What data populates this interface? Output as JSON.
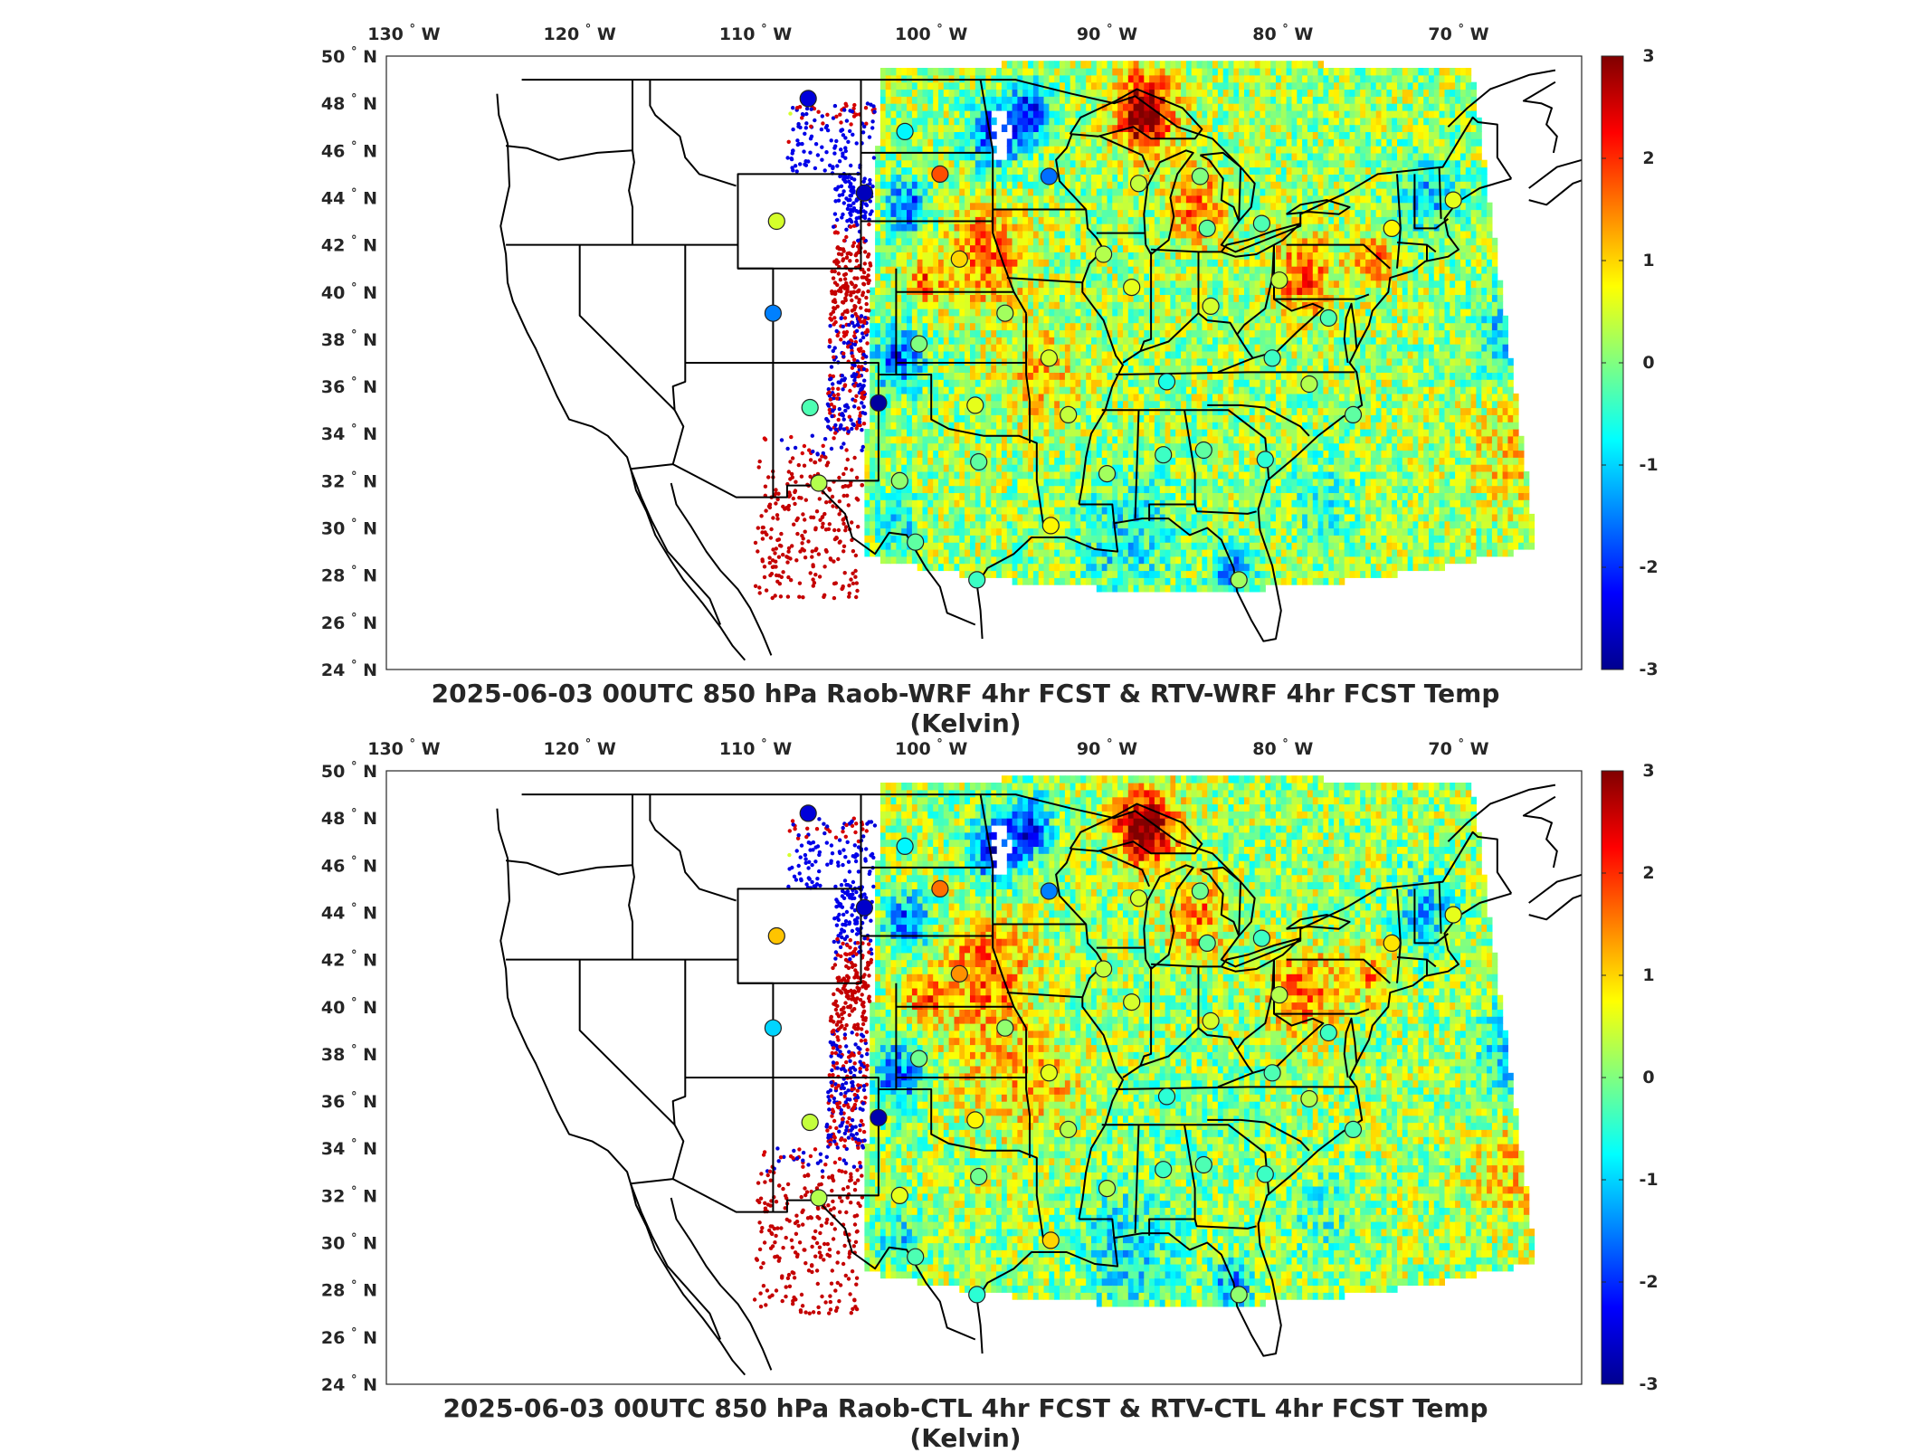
{
  "panels": [
    {
      "id": "wrf",
      "title": "2025-06-03 00UTC 850 hPa Raob-WRF 4hr FCST & RTV-WRF 4hr FCST Temp (Kelvin)",
      "stations": [
        {
          "lon": -107.0,
          "lat": 48.2,
          "value": -2.5
        },
        {
          "lon": -101.5,
          "lat": 46.8,
          "value": -0.8
        },
        {
          "lon": -99.5,
          "lat": 45.0,
          "value": 1.8
        },
        {
          "lon": -103.8,
          "lat": 44.2,
          "value": -2.7
        },
        {
          "lon": -108.8,
          "lat": 43.0,
          "value": 0.5
        },
        {
          "lon": -109.0,
          "lat": 39.1,
          "value": -1.5
        },
        {
          "lon": -106.9,
          "lat": 35.1,
          "value": -0.3
        },
        {
          "lon": -103.0,
          "lat": 35.3,
          "value": -2.9
        },
        {
          "lon": -98.4,
          "lat": 41.4,
          "value": 1.0
        },
        {
          "lon": -95.8,
          "lat": 39.1,
          "value": 0.2
        },
        {
          "lon": -100.7,
          "lat": 37.8,
          "value": 0.0
        },
        {
          "lon": -97.5,
          "lat": 35.2,
          "value": 0.6
        },
        {
          "lon": -93.3,
          "lat": 37.2,
          "value": 0.5
        },
        {
          "lon": -92.2,
          "lat": 34.8,
          "value": 0.4
        },
        {
          "lon": -97.3,
          "lat": 32.8,
          "value": -0.2
        },
        {
          "lon": -101.8,
          "lat": 32.0,
          "value": 0.1
        },
        {
          "lon": -106.4,
          "lat": 31.9,
          "value": 0.3
        },
        {
          "lon": -100.9,
          "lat": 29.4,
          "value": -0.2
        },
        {
          "lon": -97.4,
          "lat": 27.8,
          "value": -0.4
        },
        {
          "lon": -93.2,
          "lat": 30.1,
          "value": 0.8
        },
        {
          "lon": -90.0,
          "lat": 32.3,
          "value": 0.2
        },
        {
          "lon": -86.8,
          "lat": 33.1,
          "value": -0.4
        },
        {
          "lon": -84.5,
          "lat": 33.3,
          "value": -0.2
        },
        {
          "lon": -86.6,
          "lat": 36.2,
          "value": -0.6
        },
        {
          "lon": -88.6,
          "lat": 40.2,
          "value": 0.6
        },
        {
          "lon": -90.2,
          "lat": 41.6,
          "value": 0.3
        },
        {
          "lon": -93.3,
          "lat": 44.9,
          "value": -1.6
        },
        {
          "lon": -88.2,
          "lat": 44.6,
          "value": 0.4
        },
        {
          "lon": -84.7,
          "lat": 44.9,
          "value": 0.0
        },
        {
          "lon": -84.3,
          "lat": 42.7,
          "value": -0.2
        },
        {
          "lon": -81.2,
          "lat": 42.9,
          "value": -0.3
        },
        {
          "lon": -84.1,
          "lat": 39.4,
          "value": 0.5
        },
        {
          "lon": -80.2,
          "lat": 40.5,
          "value": 0.4
        },
        {
          "lon": -80.6,
          "lat": 37.2,
          "value": -0.4
        },
        {
          "lon": -77.4,
          "lat": 38.9,
          "value": -0.3
        },
        {
          "lon": -78.5,
          "lat": 36.1,
          "value": 0.3
        },
        {
          "lon": -76.0,
          "lat": 34.8,
          "value": -0.2
        },
        {
          "lon": -81.0,
          "lat": 32.9,
          "value": -0.5
        },
        {
          "lon": -82.5,
          "lat": 27.8,
          "value": 0.2
        },
        {
          "lon": -73.8,
          "lat": 42.7,
          "value": 0.8
        },
        {
          "lon": -70.3,
          "lat": 43.9,
          "value": 0.6
        }
      ]
    },
    {
      "id": "ctl",
      "title": "2025-06-03 00UTC 850 hPa Raob-CTL 4hr FCST & RTV-CTL 4hr FCST Temp (Kelvin)",
      "stations": [
        {
          "lon": -107.0,
          "lat": 48.2,
          "value": -2.5
        },
        {
          "lon": -101.5,
          "lat": 46.8,
          "value": -0.8
        },
        {
          "lon": -99.5,
          "lat": 45.0,
          "value": 1.6
        },
        {
          "lon": -103.8,
          "lat": 44.2,
          "value": -2.6
        },
        {
          "lon": -108.8,
          "lat": 43.0,
          "value": 1.1
        },
        {
          "lon": -109.0,
          "lat": 39.1,
          "value": -1.0
        },
        {
          "lon": -106.9,
          "lat": 35.1,
          "value": 0.4
        },
        {
          "lon": -103.0,
          "lat": 35.3,
          "value": -2.8
        },
        {
          "lon": -98.4,
          "lat": 41.4,
          "value": 1.4
        },
        {
          "lon": -95.8,
          "lat": 39.1,
          "value": 0.1
        },
        {
          "lon": -100.7,
          "lat": 37.8,
          "value": -0.1
        },
        {
          "lon": -97.5,
          "lat": 35.2,
          "value": 0.8
        },
        {
          "lon": -93.3,
          "lat": 37.2,
          "value": 0.6
        },
        {
          "lon": -92.2,
          "lat": 34.8,
          "value": 0.3
        },
        {
          "lon": -97.3,
          "lat": 32.8,
          "value": -0.1
        },
        {
          "lon": -101.8,
          "lat": 32.0,
          "value": 0.6
        },
        {
          "lon": -106.4,
          "lat": 31.9,
          "value": 0.3
        },
        {
          "lon": -100.9,
          "lat": 29.4,
          "value": -0.3
        },
        {
          "lon": -97.4,
          "lat": 27.8,
          "value": -0.5
        },
        {
          "lon": -93.2,
          "lat": 30.1,
          "value": 1.0
        },
        {
          "lon": -90.0,
          "lat": 32.3,
          "value": 0.3
        },
        {
          "lon": -86.8,
          "lat": 33.1,
          "value": -0.4
        },
        {
          "lon": -84.5,
          "lat": 33.3,
          "value": -0.3
        },
        {
          "lon": -86.6,
          "lat": 36.2,
          "value": -0.5
        },
        {
          "lon": -88.6,
          "lat": 40.2,
          "value": 0.5
        },
        {
          "lon": -90.2,
          "lat": 41.6,
          "value": 0.4
        },
        {
          "lon": -93.3,
          "lat": 44.9,
          "value": -1.5
        },
        {
          "lon": -88.2,
          "lat": 44.6,
          "value": 0.5
        },
        {
          "lon": -84.7,
          "lat": 44.9,
          "value": -0.1
        },
        {
          "lon": -84.3,
          "lat": 42.7,
          "value": -0.2
        },
        {
          "lon": -81.2,
          "lat": 42.9,
          "value": -0.4
        },
        {
          "lon": -84.1,
          "lat": 39.4,
          "value": 0.5
        },
        {
          "lon": -80.2,
          "lat": 40.5,
          "value": 0.3
        },
        {
          "lon": -80.6,
          "lat": 37.2,
          "value": -0.3
        },
        {
          "lon": -77.4,
          "lat": 38.9,
          "value": -0.4
        },
        {
          "lon": -78.5,
          "lat": 36.1,
          "value": 0.3
        },
        {
          "lon": -76.0,
          "lat": 34.8,
          "value": -0.3
        },
        {
          "lon": -81.0,
          "lat": 32.9,
          "value": -0.4
        },
        {
          "lon": -82.5,
          "lat": 27.8,
          "value": 0.1
        },
        {
          "lon": -73.8,
          "lat": 42.7,
          "value": 0.9
        },
        {
          "lon": -70.3,
          "lat": 43.9,
          "value": 0.6
        }
      ]
    }
  ],
  "map": {
    "lon_ticks": [
      -130,
      -120,
      -110,
      -100,
      -90,
      -80,
      -70
    ],
    "lat_ticks": [
      24,
      26,
      28,
      30,
      32,
      34,
      36,
      38,
      40,
      42,
      44,
      46,
      48,
      50
    ],
    "lon_range": [
      -131,
      -63
    ],
    "lat_range": [
      24,
      50
    ],
    "lon_suffix": "W",
    "lat_suffix": "N",
    "degree_symbol": "°"
  },
  "colorbar": {
    "range": [
      -3,
      3
    ],
    "tick_labels": [
      "3",
      "2",
      "1",
      "0",
      "-1",
      "-2",
      "-3"
    ],
    "colormap": "jet",
    "stops": [
      "#00008f",
      "#0000ff",
      "#0080ff",
      "#00ffff",
      "#80ff80",
      "#ffff00",
      "#ff8000",
      "#ff0000",
      "#800000"
    ]
  }
}
